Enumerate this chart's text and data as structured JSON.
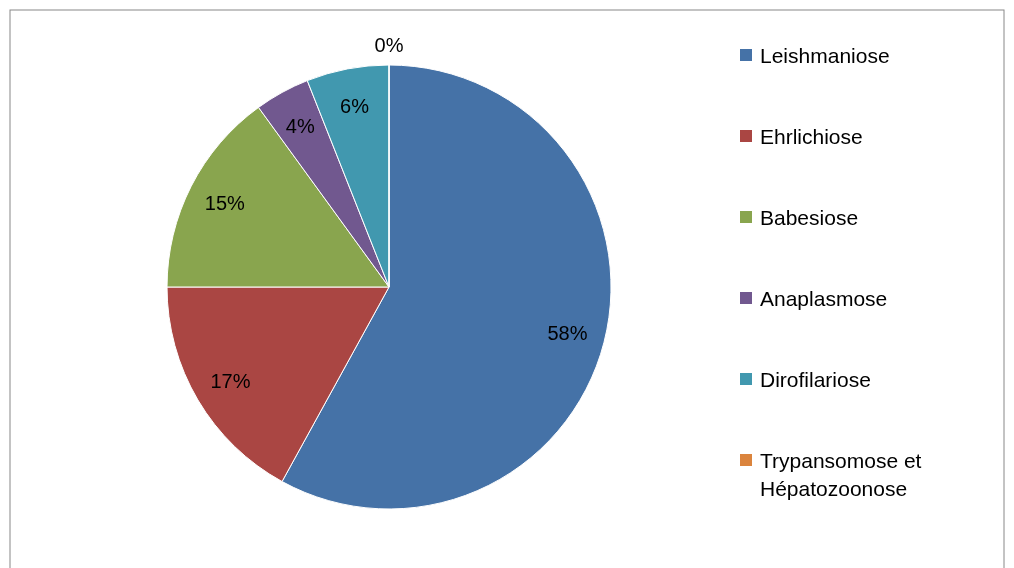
{
  "chart_data": {
    "type": "pie",
    "categories": [
      "Leishmaniose",
      "Ehrlichiose",
      "Babesiose",
      "Anaplasmose",
      "Dirofilariose",
      "Trypansomose et Hépatozoonose"
    ],
    "values": [
      58,
      17,
      15,
      4,
      6,
      0
    ],
    "colors": [
      "#4572a7",
      "#aa4643",
      "#89a54e",
      "#71588f",
      "#4198af",
      "#db843d"
    ],
    "value_labels": [
      "58%",
      "17%",
      "15%",
      "4%",
      "6%",
      "0%"
    ],
    "legend": "right"
  }
}
